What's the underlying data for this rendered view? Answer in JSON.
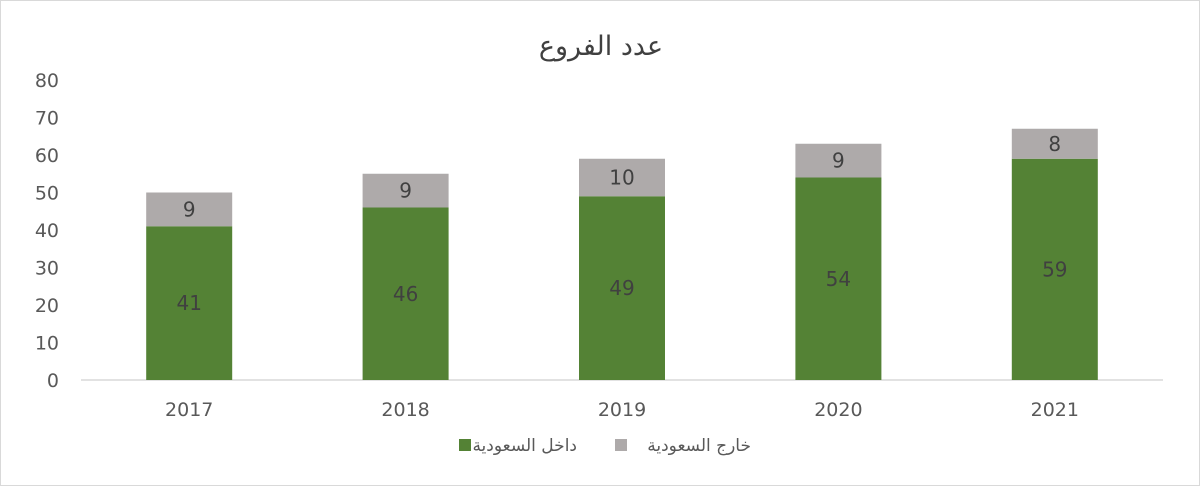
{
  "chart_data": {
    "type": "bar",
    "stacked": true,
    "title": "عدد الفروع",
    "categories": [
      "2017",
      "2018",
      "2019",
      "2020",
      "2021"
    ],
    "series": [
      {
        "name": "داخل السعودية",
        "values": [
          41,
          46,
          49,
          54,
          59
        ],
        "color": "#548235"
      },
      {
        "name": "خارج السعودية",
        "values": [
          9,
          9,
          10,
          9,
          8
        ],
        "color": "#aeaaaa"
      }
    ],
    "ylim": [
      0,
      80
    ],
    "yticks": [
      0,
      10,
      20,
      30,
      40,
      50,
      60,
      70,
      80
    ],
    "grid": false,
    "legend": "bottom",
    "data_labels": true
  }
}
